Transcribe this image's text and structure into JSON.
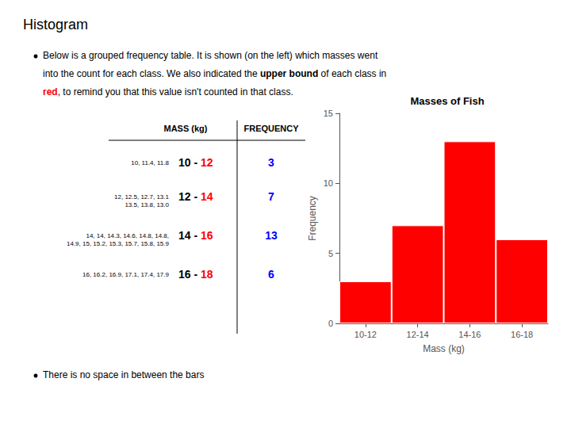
{
  "chart_data": {
    "type": "bar",
    "title": "Masses of Fish",
    "xlabel": "Mass (kg)",
    "ylabel": "Frequency",
    "categories": [
      "10-12",
      "12-14",
      "14-16",
      "16-18"
    ],
    "values": [
      3,
      7,
      13,
      6
    ],
    "color": "#ff0000",
    "ylim": [
      0,
      15
    ],
    "yticks": [
      0,
      5,
      10,
      15
    ],
    "grid": false,
    "annotations": {
      "heading": "Histogram",
      "bullet1": [
        [
          "Below is a grouped frequency table. It is shown (on the left) which masses went"
        ],
        [
          "into the count for each class. We also indicated the ",
          "upper bound",
          " of each class in"
        ],
        [
          "red",
          ", to remind you that this value isn't counted in that class."
        ]
      ],
      "bullet2": "There is no space in between the bars",
      "table": {
        "headers": [
          "MASS (kg)",
          "FREQUENCY"
        ],
        "rows": [
          {
            "masses": "10, 11.4, 11.8",
            "from": "10 - ",
            "to": "12"
          },
          {
            "masses": "12, 12.5, 12.7, 13.1\n13.5, 13.8, 13.0",
            "from": "12 - ",
            "to": "14"
          },
          {
            "masses": "14, 14, 14.3, 14.6, 14.8, 14.8,\n14.9, 15, 15.2, 15.3, 15.7, 15.8, 15.9",
            "from": "14 - ",
            "to": "16"
          },
          {
            "masses": "16, 16.2, 16.9, 17.1, 17.4, 17.9",
            "from": "16 - ",
            "to": "18"
          }
        ]
      }
    }
  }
}
